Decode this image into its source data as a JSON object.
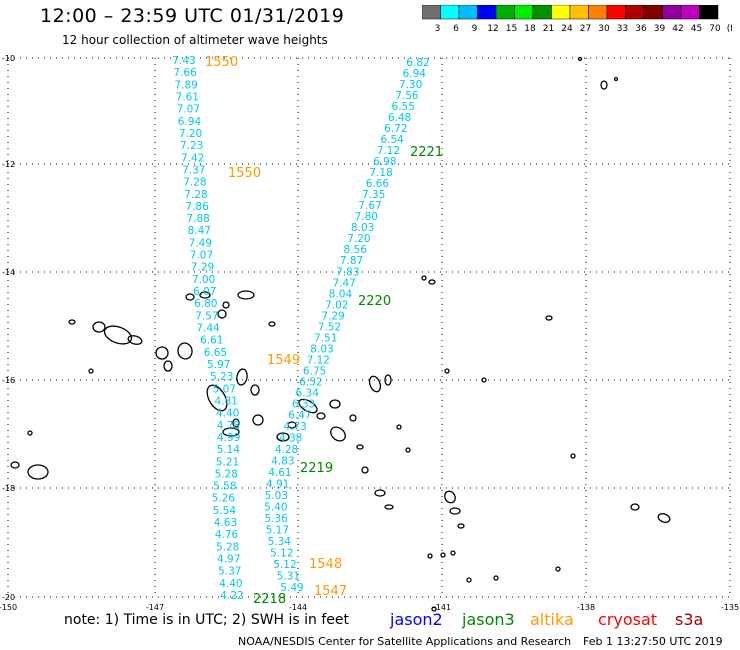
{
  "header": {
    "title": "12:00 – 23:59 UTC 01/31/2019",
    "subtitle": "12 hour collection of altimeter wave heights"
  },
  "scale": {
    "colors": [
      "#707070",
      "#00ffff",
      "#00bfff",
      "#0000ff",
      "#00b000",
      "#00ee00",
      "#009000",
      "#ffff00",
      "#ffc000",
      "#ff8000",
      "#ff0000",
      "#b00000",
      "#800000",
      "#9000a0",
      "#c000c0",
      "#000000"
    ],
    "labels": [
      "3",
      "6",
      "9",
      "12",
      "15",
      "18",
      "21",
      "24",
      "27",
      "30",
      "33",
      "36",
      "39",
      "42",
      "45",
      "70",
      "(ft)"
    ]
  },
  "axes": {
    "x_ticks": [
      "-150",
      "-147",
      "-144",
      "-141",
      "-138",
      "-135"
    ],
    "y_ticks": [
      "-10",
      "-12",
      "-14",
      "-16",
      "-18",
      "-20"
    ]
  },
  "tracks": {
    "track_a": [
      "7.43",
      "7.66",
      "7.89",
      "7.61",
      "7.07",
      "6.94",
      "7.20",
      "7.23",
      "7.42",
      "7.37",
      "7.28",
      "7.28",
      "7.86",
      "7.88",
      "8.47",
      "7.49",
      "7.07",
      "7.29",
      "7.00",
      "6.07",
      "6.80",
      "7.57",
      "7.44",
      "6.61",
      "6.65",
      "5.97",
      "5.23",
      "5.07",
      "4.81",
      "4.40",
      "4.78",
      "4.99",
      "5.14",
      "5.21",
      "5.28",
      "5.58",
      "5.26",
      "5.54",
      "4.63",
      "4.76",
      "5.28",
      "4.97",
      "5.37",
      "4.40",
      "4.22"
    ],
    "track_b": [
      "6.82",
      "6.94",
      "7.30",
      "7.56",
      "6.55",
      "6.48",
      "6.72",
      "6.54",
      "7.12",
      "6.98",
      "7.18",
      "6.66",
      "7.35",
      "7.67",
      "7.80",
      "8.03",
      "7.20",
      "8.56",
      "7.87",
      "7.83",
      "7.47",
      "8.04",
      "7.02",
      "7.29",
      "7.52",
      "7.51",
      "8.03",
      "7.12",
      "6.75",
      "6.52",
      "6.34",
      "6.33",
      "6.47",
      "4.73",
      "4.38",
      "4.28",
      "4.83",
      "4.61",
      "4.91",
      "5.03",
      "5.40",
      "5.36",
      "5.17",
      "5.34",
      "5.12",
      "5.12",
      "5.31",
      "5.49"
    ]
  },
  "pass_labels": [
    {
      "text": "1550",
      "color": "#ff9900"
    },
    {
      "text": "1550",
      "color": "#ff9900"
    },
    {
      "text": "2221",
      "color": "#008800"
    },
    {
      "text": "2220",
      "color": "#008800"
    },
    {
      "text": "1549",
      "color": "#ff9900"
    },
    {
      "text": "2219",
      "color": "#008800"
    },
    {
      "text": "1548",
      "color": "#ff9900"
    },
    {
      "text": "1547",
      "color": "#ff9900"
    },
    {
      "text": "2218",
      "color": "#008800"
    }
  ],
  "note": "note:  1) Time is in UTC;  2) SWH is in feet",
  "legend": [
    {
      "text": "jason2",
      "color": "#0000ff"
    },
    {
      "text": "jason3",
      "color": "#008800"
    },
    {
      "text": "altika",
      "color": "#ff9900"
    },
    {
      "text": "cryosat",
      "color": "#ff0000"
    },
    {
      "text": "s3a",
      "color": "#a00000"
    }
  ],
  "footer": {
    "credit": "NOAA/NESDIS Center for Satellite Applications and Research",
    "timestamp": "Feb  1 13:27:50 UTC 2019"
  }
}
